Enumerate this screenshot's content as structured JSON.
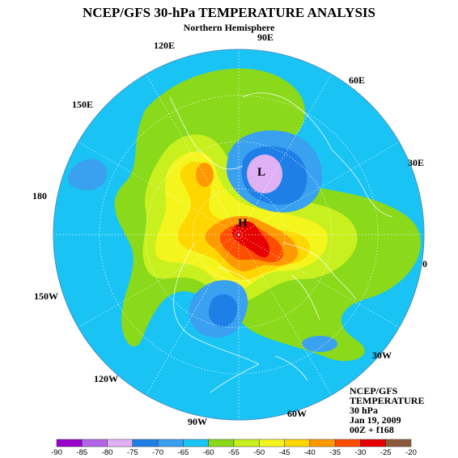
{
  "title": "NCEP/GFS 30-hPa TEMPERATURE ANALYSIS",
  "subtitle": "Northern Hemisphere",
  "longitude_labels": [
    "90E",
    "60E",
    "30E",
    "0",
    "30W",
    "60W",
    "90W",
    "120W",
    "150W",
    "180",
    "150E",
    "120E"
  ],
  "centers": {
    "low": "L",
    "high": "H"
  },
  "info_box": [
    "NCEP/GFS",
    "TEMPERATURE",
    "30 hPa",
    "Jan 19, 2009",
    "00Z + f168"
  ],
  "colorbar": {
    "labels": [
      "-90",
      "-85",
      "-80",
      "-75",
      "-70",
      "-65",
      "-60",
      "-55",
      "-50",
      "-45",
      "-40",
      "-35",
      "-30",
      "-25",
      "-20"
    ],
    "colors": [
      "#9900cc",
      "#b266e6",
      "#e0b0f5",
      "#1e7fe6",
      "#3aa0f0",
      "#19c4f5",
      "#8ad91a",
      "#c8f01e",
      "#f5f51e",
      "#ffd700",
      "#ff9900",
      "#ff4d00",
      "#e60000",
      "#8b5a3c"
    ]
  },
  "field_colors": {
    "background": "#19c4f5",
    "band_green": "#8ad91a",
    "band_yellowgreen": "#c8f01e",
    "band_yellow": "#f5f51e",
    "band_gold": "#ffd700",
    "band_orange": "#ff9900",
    "band_redorange": "#ff4d00",
    "band_red": "#e60000",
    "low_outer": "#3aa0f0",
    "low_mid": "#1e7fe6",
    "low_core": "#e0b0f5"
  }
}
